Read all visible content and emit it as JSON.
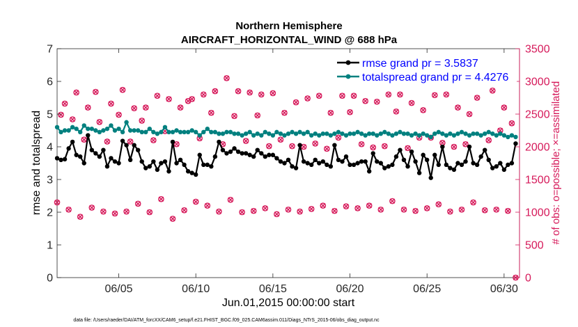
{
  "chart_data": {
    "type": "line",
    "title": "Northern Hemisphere",
    "subtitle": "AIRCRAFT_HORIZONTAL_WIND @ 688 hPa",
    "xlabel": "Jun.01,2015 00:00:00 start",
    "ylabel": "rmse and totalspread",
    "y2label": "# of obs: o=possible; ×=assimilated",
    "x_tick_labels": [
      "06/05",
      "06/10",
      "06/15",
      "06/20",
      "06/25",
      "06/30"
    ],
    "x_tick_days": [
      5,
      10,
      15,
      20,
      25,
      30
    ],
    "xlim": [
      1,
      31
    ],
    "ylim": [
      0,
      7
    ],
    "y_ticks": [
      "0",
      "1",
      "2",
      "3",
      "4",
      "5",
      "6",
      "7"
    ],
    "y2lim": [
      0,
      3500
    ],
    "y2_ticks": [
      "0",
      "500",
      "1000",
      "1500",
      "2000",
      "2500",
      "3000",
      "3500"
    ],
    "grid": false,
    "legend_position": "top-right",
    "legend": [
      "rmse grand pr = 3.5837",
      "totalspread grand pr = 4.4276"
    ],
    "x_days": [
      1.0,
      1.25,
      1.5,
      1.75,
      2.0,
      2.25,
      2.5,
      2.75,
      3.0,
      3.25,
      3.5,
      3.75,
      4.0,
      4.25,
      4.5,
      4.75,
      5.0,
      5.25,
      5.5,
      5.75,
      6.0,
      6.25,
      6.5,
      6.75,
      7.0,
      7.25,
      7.5,
      7.75,
      8.0,
      8.25,
      8.5,
      8.75,
      9.0,
      9.25,
      9.5,
      9.75,
      10.0,
      10.25,
      10.5,
      10.75,
      11.0,
      11.25,
      11.5,
      11.75,
      12.0,
      12.25,
      12.5,
      12.75,
      13.0,
      13.25,
      13.5,
      13.75,
      14.0,
      14.25,
      14.5,
      14.75,
      15.0,
      15.25,
      15.5,
      15.75,
      16.0,
      16.25,
      16.5,
      16.75,
      17.0,
      17.25,
      17.5,
      17.75,
      18.0,
      18.25,
      18.5,
      18.75,
      19.0,
      19.25,
      19.5,
      19.75,
      20.0,
      20.25,
      20.5,
      20.75,
      21.0,
      21.25,
      21.5,
      21.75,
      22.0,
      22.25,
      22.5,
      22.75,
      23.0,
      23.25,
      23.5,
      23.75,
      24.0,
      24.25,
      24.5,
      24.75,
      25.0,
      25.25,
      25.5,
      25.75,
      26.0,
      26.25,
      26.5,
      26.75,
      27.0,
      27.25,
      27.5,
      27.75,
      28.0,
      28.25,
      28.5,
      28.75,
      29.0,
      29.25,
      29.5,
      29.75,
      30.0,
      30.25,
      30.5,
      30.75
    ],
    "series": [
      {
        "name": "rmse grand pr = 3.5837",
        "color": "#000000",
        "marker": "filled-circle",
        "values": [
          3.65,
          3.6,
          3.62,
          3.95,
          4.15,
          3.75,
          3.7,
          3.5,
          4.35,
          3.9,
          3.8,
          3.7,
          3.9,
          3.4,
          3.65,
          3.55,
          3.5,
          4.18,
          4.05,
          3.6,
          4.05,
          3.9,
          3.55,
          3.35,
          3.4,
          3.55,
          3.3,
          3.5,
          3.55,
          3.25,
          4.15,
          3.5,
          3.6,
          3.45,
          3.25,
          3.2,
          3.15,
          3.75,
          3.45,
          3.45,
          3.4,
          3.7,
          4.15,
          3.9,
          3.8,
          3.85,
          3.95,
          3.85,
          3.8,
          3.8,
          3.75,
          3.7,
          3.9,
          3.8,
          3.7,
          3.75,
          3.75,
          3.65,
          3.55,
          3.5,
          3.6,
          3.4,
          3.35,
          4.05,
          3.55,
          3.5,
          3.45,
          3.6,
          3.5,
          3.55,
          3.45,
          3.4,
          4.05,
          3.6,
          3.55,
          3.7,
          3.45,
          3.45,
          3.5,
          3.55,
          3.55,
          3.25,
          3.8,
          3.55,
          3.5,
          3.35,
          3.4,
          3.45,
          3.7,
          3.9,
          3.6,
          3.4,
          3.85,
          3.55,
          3.2,
          3.75,
          3.6,
          3.05,
          3.75,
          3.45,
          4.0,
          3.45,
          3.35,
          3.3,
          3.5,
          3.45,
          3.55,
          4.0,
          3.5,
          3.45,
          3.7,
          3.9,
          3.6,
          3.35,
          3.4,
          3.5,
          3.3,
          3.45,
          3.5,
          4.1
        ]
      },
      {
        "name": "totalspread grand pr = 4.4276",
        "color": "#00807f",
        "marker": "filled-circle",
        "values": [
          4.6,
          4.45,
          4.5,
          4.5,
          4.6,
          4.55,
          4.45,
          4.65,
          4.55,
          4.55,
          4.5,
          4.45,
          4.5,
          4.55,
          4.65,
          4.5,
          4.55,
          4.45,
          4.75,
          4.5,
          4.5,
          4.5,
          4.45,
          4.45,
          4.55,
          4.45,
          4.4,
          4.45,
          4.6,
          4.45,
          4.45,
          4.5,
          4.45,
          4.45,
          4.45,
          4.5,
          4.45,
          4.35,
          4.45,
          4.55,
          4.45,
          4.45,
          4.4,
          4.4,
          4.45,
          4.45,
          4.4,
          4.4,
          4.35,
          4.4,
          4.45,
          4.35,
          4.4,
          4.35,
          4.45,
          4.4,
          4.35,
          4.45,
          4.4,
          4.35,
          4.4,
          4.45,
          4.4,
          4.45,
          4.4,
          4.45,
          4.35,
          4.4,
          4.35,
          4.4,
          4.4,
          4.35,
          4.4,
          4.45,
          4.4,
          4.35,
          4.4,
          4.4,
          4.45,
          4.4,
          4.35,
          4.4,
          4.4,
          4.35,
          4.4,
          4.45,
          4.4,
          4.35,
          4.4,
          4.45,
          4.4,
          4.4,
          4.35,
          4.4,
          4.35,
          4.4,
          4.35,
          4.3,
          4.4,
          4.45,
          4.4,
          4.35,
          4.4,
          4.35,
          4.4,
          4.45,
          4.4,
          4.35,
          4.4,
          4.4,
          4.35,
          4.4,
          4.45,
          4.4,
          4.35,
          4.4,
          4.35,
          4.3,
          4.35,
          4.3
        ]
      },
      {
        "name": "# of obs possible",
        "axis": "right",
        "color": "#d6195a",
        "marker": "open-circle",
        "values": [
          1150,
          2490,
          2660,
          1040,
          2420,
          2830,
          930,
          2110,
          2600,
          1070,
          2840,
          2380,
          1010,
          2080,
          2660,
          980,
          2490,
          2870,
          1010,
          2080,
          2590,
          1130,
          2400,
          2600,
          1000,
          2100,
          2780,
          1200,
          2240,
          2730,
          900,
          2040,
          2600,
          1030,
          2700,
          2730,
          1160,
          2130,
          2800,
          1100,
          2520,
          2850,
          1010,
          2040,
          3050,
          1190,
          2470,
          2850,
          1000,
          2090,
          2830,
          1020,
          2480,
          2800,
          1060,
          2010,
          2820,
          970,
          2110,
          2520,
          1040,
          2010,
          2680,
          1010,
          2000,
          2740,
          1050,
          2050,
          2780,
          1100,
          1970,
          2520,
          1020,
          2140,
          2780,
          1090,
          2530,
          2780,
          1060,
          2040,
          2700,
          1100,
          1990,
          2690,
          1040,
          2010,
          2800,
          1170,
          2540,
          2800,
          1040,
          1980,
          2670,
          1020,
          2140,
          2560,
          1060,
          2140,
          2790,
          1120,
          2060,
          2800,
          1010,
          2000,
          2600,
          1040,
          2040,
          2500,
          1150,
          2750,
          3000,
          1030,
          2100,
          2860,
          1040,
          2250,
          2600,
          1020,
          2360,
          0
        ]
      },
      {
        "name": "# of obs assimilated",
        "axis": "right",
        "color": "#d6195a",
        "marker": "cross",
        "values": [
          1150,
          2490,
          2660,
          1040,
          2420,
          2830,
          930,
          2110,
          2600,
          1070,
          2840,
          2380,
          1010,
          2080,
          2660,
          980,
          2490,
          2870,
          1010,
          2080,
          2590,
          1130,
          2400,
          2600,
          1000,
          2100,
          2780,
          1200,
          2240,
          2730,
          900,
          2040,
          2600,
          1030,
          2700,
          2730,
          1160,
          2130,
          2800,
          1100,
          2520,
          2850,
          1010,
          2040,
          3050,
          1190,
          2470,
          2850,
          1000,
          2090,
          2830,
          1020,
          2480,
          2800,
          1060,
          2010,
          2820,
          970,
          2110,
          2520,
          1040,
          2010,
          2680,
          1010,
          2000,
          2740,
          1050,
          2050,
          2780,
          1100,
          1970,
          2520,
          1020,
          2140,
          2780,
          1090,
          2530,
          2780,
          1060,
          2040,
          2700,
          1100,
          1990,
          2690,
          1040,
          2010,
          2800,
          1170,
          2540,
          2800,
          1040,
          1980,
          2670,
          1020,
          2140,
          2560,
          1060,
          2140,
          2790,
          1120,
          2060,
          2800,
          1010,
          2000,
          2600,
          1040,
          2040,
          2500,
          1150,
          2750,
          3000,
          1030,
          2100,
          2860,
          1040,
          2250,
          2600,
          1020,
          2360,
          0
        ]
      }
    ],
    "footnote": "data file: /Users/raeder/DAI/ATM_forcXX/CAM6_setup/f.e21.FHIST_BGC.f09_025.CAM6assim.011/Diags_NTrS_2015-06/obs_diag_output.nc"
  }
}
